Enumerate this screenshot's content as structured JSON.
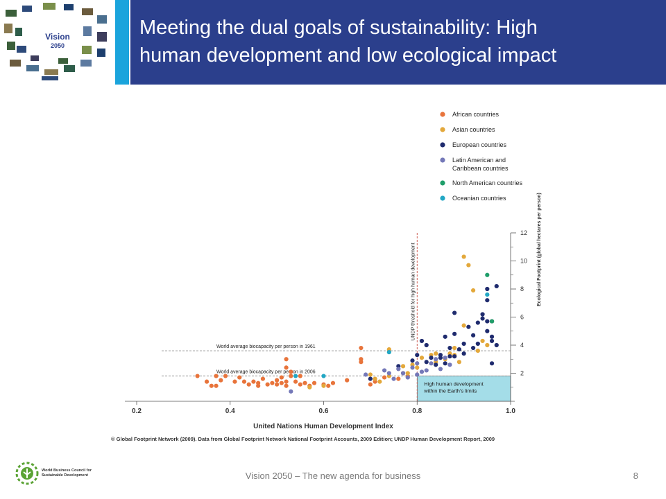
{
  "header": {
    "title": "Meeting the dual goals of sustainability: High\nhuman development and low ecological impact",
    "logo_title": "Vision",
    "logo_year": "2050"
  },
  "footer": {
    "center_text": "Vision 2050 – The new agenda for business",
    "page_number": "8",
    "org_name": "World Business Council for\nSustainable Development"
  },
  "colors": {
    "title_bar": "#2b3f8c",
    "accent_bar": "#1aa4dc",
    "threshold_box": "#a4dde8"
  },
  "chart_data": {
    "type": "scatter",
    "title": "",
    "xlabel": "United Nations Human Development Index",
    "ylabel": "Ecological Footprint (global hectares per person)",
    "xlim": [
      0.2,
      1.0
    ],
    "ylim": [
      0,
      12
    ],
    "x_ticks": [
      "0.2",
      "0.4",
      "0.6",
      "0.8",
      "1.0"
    ],
    "y_ticks": [
      "2",
      "4",
      "6",
      "8",
      "10",
      "12"
    ],
    "legend_position": "top-right",
    "source": "© Global Footprint Network (2009). Data from Global Footprint Network National Footprint Accounts, 2009 Edition; UNDP Human Development Report, 2009",
    "annotations": {
      "biocapacity_1961_label": "World average biocapacity per person in 1961",
      "biocapacity_1961_value": 3.6,
      "biocapacity_2006_label": "World average biocapacity per person in 2006",
      "biocapacity_2006_value": 1.8,
      "threshold_label": "UNDP threshold for high human development",
      "threshold_value": 0.8,
      "box_label_line1": "High human development",
      "box_label_line2": "within the Earth's limits"
    },
    "series": [
      {
        "name": "African countries",
        "color": "#e8743b",
        "points": [
          [
            0.33,
            1.8
          ],
          [
            0.35,
            1.4
          ],
          [
            0.36,
            1.1
          ],
          [
            0.37,
            1.8
          ],
          [
            0.37,
            1.1
          ],
          [
            0.38,
            1.5
          ],
          [
            0.39,
            1.8
          ],
          [
            0.41,
            1.4
          ],
          [
            0.42,
            1.7
          ],
          [
            0.43,
            1.4
          ],
          [
            0.44,
            1.2
          ],
          [
            0.45,
            1.4
          ],
          [
            0.46,
            1.1
          ],
          [
            0.46,
            1.3
          ],
          [
            0.47,
            1.6
          ],
          [
            0.48,
            1.2
          ],
          [
            0.49,
            1.3
          ],
          [
            0.5,
            1.2
          ],
          [
            0.5,
            1.5
          ],
          [
            0.51,
            1.3
          ],
          [
            0.51,
            1.7
          ],
          [
            0.52,
            1.1
          ],
          [
            0.52,
            1.4
          ],
          [
            0.52,
            2.4
          ],
          [
            0.52,
            3.0
          ],
          [
            0.53,
            1.8
          ],
          [
            0.53,
            2.1
          ],
          [
            0.54,
            1.4
          ],
          [
            0.55,
            1.2
          ],
          [
            0.55,
            1.8
          ],
          [
            0.56,
            1.3
          ],
          [
            0.57,
            1.1
          ],
          [
            0.58,
            1.3
          ],
          [
            0.6,
            1.2
          ],
          [
            0.61,
            1.1
          ],
          [
            0.62,
            1.3
          ],
          [
            0.65,
            1.5
          ],
          [
            0.68,
            2.8
          ],
          [
            0.68,
            3.0
          ],
          [
            0.68,
            3.8
          ],
          [
            0.7,
            1.2
          ],
          [
            0.71,
            1.4
          ],
          [
            0.73,
            1.7
          ],
          [
            0.76,
            1.6
          ],
          [
            0.77,
            2.0
          ],
          [
            0.78,
            1.8
          ]
        ]
      },
      {
        "name": "Asian countries",
        "color": "#e3a83b",
        "points": [
          [
            0.57,
            1.0
          ],
          [
            0.6,
            1.1
          ],
          [
            0.7,
            1.9
          ],
          [
            0.71,
            1.6
          ],
          [
            0.72,
            1.4
          ],
          [
            0.74,
            1.8
          ],
          [
            0.74,
            3.7
          ],
          [
            0.77,
            2.5
          ],
          [
            0.78,
            2.0
          ],
          [
            0.79,
            2.6
          ],
          [
            0.8,
            2.4
          ],
          [
            0.81,
            3.1
          ],
          [
            0.83,
            3.3
          ],
          [
            0.84,
            2.8
          ],
          [
            0.84,
            3.4
          ],
          [
            0.86,
            3.0
          ],
          [
            0.87,
            3.4
          ],
          [
            0.88,
            3.3
          ],
          [
            0.88,
            3.8
          ],
          [
            0.89,
            2.8
          ],
          [
            0.9,
            5.4
          ],
          [
            0.9,
            10.3
          ],
          [
            0.91,
            9.7
          ],
          [
            0.92,
            7.9
          ],
          [
            0.93,
            3.6
          ],
          [
            0.94,
            4.3
          ],
          [
            0.95,
            4.0
          ],
          [
            0.96,
            5.7
          ]
        ]
      },
      {
        "name": "European countries",
        "color": "#1f2b6e",
        "points": [
          [
            0.7,
            1.6
          ],
          [
            0.76,
            2.5
          ],
          [
            0.79,
            2.9
          ],
          [
            0.8,
            3.3
          ],
          [
            0.81,
            4.3
          ],
          [
            0.82,
            2.8
          ],
          [
            0.82,
            4.0
          ],
          [
            0.83,
            3.1
          ],
          [
            0.84,
            2.6
          ],
          [
            0.85,
            3.1
          ],
          [
            0.85,
            3.3
          ],
          [
            0.86,
            2.7
          ],
          [
            0.86,
            4.6
          ],
          [
            0.87,
            3.2
          ],
          [
            0.87,
            3.8
          ],
          [
            0.88,
            3.2
          ],
          [
            0.88,
            4.8
          ],
          [
            0.88,
            6.3
          ],
          [
            0.89,
            3.7
          ],
          [
            0.9,
            3.4
          ],
          [
            0.9,
            4.1
          ],
          [
            0.91,
            5.3
          ],
          [
            0.92,
            3.8
          ],
          [
            0.92,
            4.7
          ],
          [
            0.93,
            4.1
          ],
          [
            0.93,
            5.6
          ],
          [
            0.94,
            5.9
          ],
          [
            0.94,
            6.2
          ],
          [
            0.95,
            5.0
          ],
          [
            0.95,
            5.7
          ],
          [
            0.95,
            7.2
          ],
          [
            0.95,
            8.0
          ],
          [
            0.96,
            2.7
          ],
          [
            0.96,
            4.3
          ],
          [
            0.96,
            4.6
          ],
          [
            0.96,
            5.7
          ],
          [
            0.97,
            4.0
          ],
          [
            0.97,
            8.2
          ]
        ]
      },
      {
        "name": "Latin American and Caribbean countries",
        "color": "#7478b8",
        "points": [
          [
            0.53,
            0.7
          ],
          [
            0.69,
            1.9
          ],
          [
            0.73,
            2.2
          ],
          [
            0.74,
            2.0
          ],
          [
            0.75,
            1.6
          ],
          [
            0.76,
            2.3
          ],
          [
            0.77,
            2.0
          ],
          [
            0.78,
            1.7
          ],
          [
            0.79,
            2.4
          ],
          [
            0.8,
            1.9
          ],
          [
            0.8,
            2.7
          ],
          [
            0.81,
            2.1
          ],
          [
            0.82,
            2.2
          ],
          [
            0.83,
            2.7
          ],
          [
            0.84,
            3.0
          ],
          [
            0.85,
            2.3
          ],
          [
            0.86,
            3.1
          ],
          [
            0.87,
            2.6
          ]
        ]
      },
      {
        "name": "North American countries",
        "color": "#1f9e6a",
        "points": [
          [
            0.95,
            9.0
          ],
          [
            0.96,
            5.7
          ]
        ]
      },
      {
        "name": "Oceanian countries",
        "color": "#22a7c4",
        "points": [
          [
            0.54,
            1.8
          ],
          [
            0.6,
            1.8
          ],
          [
            0.74,
            3.5
          ],
          [
            0.95,
            7.6
          ]
        ]
      }
    ]
  }
}
